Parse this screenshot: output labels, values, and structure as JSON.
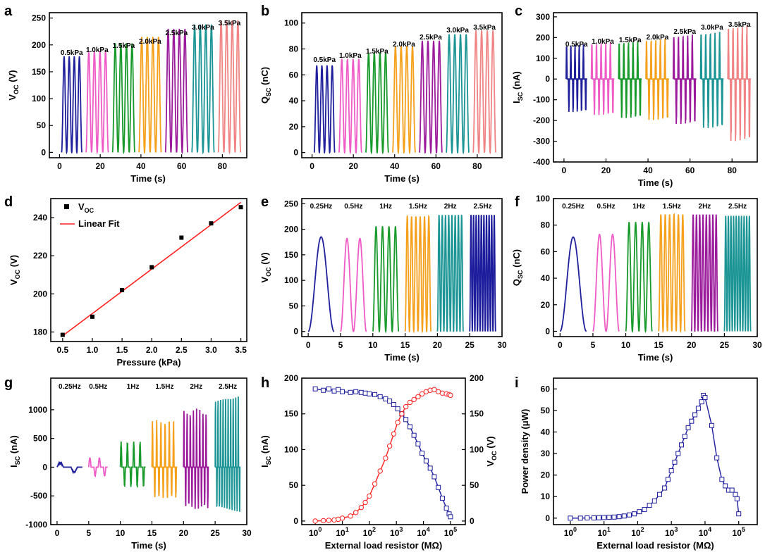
{
  "colors": {
    "navy": "#1f1f9c",
    "pink": "#ef5bc6",
    "green": "#179a2a",
    "orange": "#f5a01a",
    "purple": "#9b1a9b",
    "teal": "#1a9494",
    "salmon": "#f08484",
    "red": "#ff2020",
    "blue_line": "#1c1c9c"
  },
  "chart_data": [
    {
      "id": "a",
      "panel_label": "a",
      "type": "line",
      "title": "",
      "xlabel": "Time (s)",
      "ylabel_main": "V",
      "ylabel_sub": "OC",
      "ylabel_unit": " (V)",
      "xlim": [
        -5,
        92
      ],
      "ylim": [
        -10,
        260
      ],
      "xticks": [
        "0",
        "20",
        "40",
        "60",
        "80"
      ],
      "yticks": [
        "0",
        "50",
        "100",
        "150",
        "200",
        "250"
      ],
      "series": [
        {
          "name": "0.5kPa",
          "start": 1,
          "end": 11,
          "peaks": 4,
          "peak": 178,
          "color": "navy"
        },
        {
          "name": "1.0kPa",
          "start": 13,
          "end": 24,
          "peaks": 4,
          "peak": 188,
          "color": "pink"
        },
        {
          "name": "1.5kPa",
          "start": 26,
          "end": 37,
          "peaks": 4,
          "peak": 202,
          "color": "green"
        },
        {
          "name": "2.0kPa",
          "start": 39,
          "end": 50,
          "peaks": 4,
          "peak": 214,
          "color": "orange"
        },
        {
          "name": "2.5kPa",
          "start": 52,
          "end": 63,
          "peaks": 4,
          "peak": 229,
          "color": "purple"
        },
        {
          "name": "3.0kPa",
          "start": 65,
          "end": 76,
          "peaks": 4,
          "peak": 237,
          "color": "teal"
        },
        {
          "name": "3.5kPa",
          "start": 78,
          "end": 89,
          "peaks": 4,
          "peak": 245,
          "color": "salmon"
        }
      ]
    },
    {
      "id": "b",
      "panel_label": "b",
      "type": "line",
      "title": "",
      "xlabel": "Time (s)",
      "ylabel_main": "Q",
      "ylabel_sub": "SC",
      "ylabel_unit": " (nC)",
      "xlim": [
        -5,
        92
      ],
      "ylim": [
        -4,
        108
      ],
      "xticks": [
        "0",
        "20",
        "40",
        "60",
        "80"
      ],
      "yticks": [
        "0",
        "20",
        "40",
        "60",
        "80",
        "100"
      ],
      "series": [
        {
          "name": "0.5kPa",
          "start": 1,
          "end": 11,
          "peaks": 4,
          "peak": 67,
          "color": "navy"
        },
        {
          "name": "1.0kPa",
          "start": 13,
          "end": 24,
          "peaks": 4,
          "peak": 72,
          "color": "pink"
        },
        {
          "name": "1.5kPa",
          "start": 26,
          "end": 37,
          "peaks": 4,
          "peak": 77,
          "color": "green"
        },
        {
          "name": "2.0kPa",
          "start": 39,
          "end": 50,
          "peaks": 4,
          "peak": 82,
          "color": "orange"
        },
        {
          "name": "2.5kPa",
          "start": 52,
          "end": 63,
          "peaks": 4,
          "peak": 86,
          "color": "purple"
        },
        {
          "name": "3.0kPa",
          "start": 65,
          "end": 76,
          "peaks": 4,
          "peak": 91,
          "color": "teal"
        },
        {
          "name": "3.5kPa",
          "start": 78,
          "end": 89,
          "peaks": 4,
          "peak": 94,
          "color": "salmon"
        }
      ]
    },
    {
      "id": "c",
      "panel_label": "c",
      "type": "line",
      "title": "",
      "xlabel": "Time (s)",
      "ylabel_main": "I",
      "ylabel_sub": "SC",
      "ylabel_unit": " (nA)",
      "xlim": [
        -5,
        92
      ],
      "ylim": [
        -400,
        320
      ],
      "xticks": [
        "0",
        "20",
        "40",
        "60",
        "80"
      ],
      "yticks": [
        "-400",
        "-300",
        "-200",
        "-100",
        "0",
        "100",
        "200",
        "300"
      ],
      "series": [
        {
          "name": "0.5kPa",
          "start": 1,
          "end": 11,
          "peaks": 5,
          "peak": 170,
          "trough": -165,
          "color": "navy"
        },
        {
          "name": "1.0kPa",
          "start": 13,
          "end": 24,
          "peaks": 5,
          "peak": 180,
          "trough": -180,
          "color": "pink"
        },
        {
          "name": "1.5kPa",
          "start": 26,
          "end": 37,
          "peaks": 5,
          "peak": 185,
          "trough": -195,
          "color": "green"
        },
        {
          "name": "2.0kPa",
          "start": 39,
          "end": 50,
          "peaks": 5,
          "peak": 198,
          "trough": -205,
          "color": "orange"
        },
        {
          "name": "2.5kPa",
          "start": 52,
          "end": 63,
          "peaks": 5,
          "peak": 218,
          "trough": -225,
          "color": "purple"
        },
        {
          "name": "3.0kPa",
          "start": 65,
          "end": 76,
          "peaks": 5,
          "peak": 232,
          "trough": -245,
          "color": "teal"
        },
        {
          "name": "3.5kPa",
          "start": 78,
          "end": 89,
          "peaks": 5,
          "peak": 262,
          "trough": -310,
          "color": "salmon"
        }
      ]
    },
    {
      "id": "d",
      "panel_label": "d",
      "type": "scatter",
      "title": "",
      "xlabel": "Pressure (kPa)",
      "ylabel_main": "V",
      "ylabel_sub": "OC",
      "ylabel_unit": " (V)",
      "xlim": [
        0.3,
        3.6
      ],
      "ylim": [
        175,
        250
      ],
      "xticks": [
        "0.5",
        "1.0",
        "1.5",
        "2.0",
        "2.5",
        "3.0",
        "3.5"
      ],
      "yticks": [
        "180",
        "200",
        "220",
        "240"
      ],
      "x": [
        0.5,
        1.0,
        1.5,
        2.0,
        2.5,
        3.0,
        3.5
      ],
      "y": [
        178.5,
        188,
        202,
        214,
        229.5,
        237,
        245.5
      ],
      "fit": {
        "x": [
          0.5,
          3.5
        ],
        "y": [
          178,
          248
        ]
      },
      "legend": [
        {
          "label_main": "V",
          "label_sub": "OC",
          "kind": "square",
          "color": "#000000"
        },
        {
          "label_main": "Linear Fit",
          "label_sub": "",
          "kind": "line",
          "color": "red"
        }
      ]
    },
    {
      "id": "e",
      "panel_label": "e",
      "type": "line",
      "title": "",
      "xlabel": "Time (s)",
      "ylabel_main": "V",
      "ylabel_sub": "OC",
      "ylabel_unit": " (V)",
      "xlim": [
        -1,
        30
      ],
      "ylim": [
        -10,
        260
      ],
      "xticks": [
        "0",
        "5",
        "10",
        "15",
        "20",
        "25",
        "30"
      ],
      "yticks": [
        "0",
        "50",
        "100",
        "150",
        "200",
        "250"
      ],
      "series": [
        {
          "name": "0.25Hz",
          "start": 0,
          "end": 4,
          "peaks": 1,
          "peak": 185,
          "color": "navy"
        },
        {
          "name": "0.5Hz",
          "start": 5,
          "end": 9,
          "peaks": 2,
          "peak": 182,
          "color": "pink"
        },
        {
          "name": "1Hz",
          "start": 10,
          "end": 14,
          "peaks": 4,
          "peak": 205,
          "color": "green"
        },
        {
          "name": "1.5Hz",
          "start": 15,
          "end": 19,
          "peaks": 6,
          "peak": 225,
          "color": "orange"
        },
        {
          "name": "2Hz",
          "start": 20,
          "end": 24,
          "peaks": 8,
          "peak": 228,
          "color": "teal"
        },
        {
          "name": "2.5Hz",
          "start": 25,
          "end": 29,
          "peaks": 10,
          "peak": 228,
          "color": "blue_line"
        }
      ]
    },
    {
      "id": "f",
      "panel_label": "f",
      "type": "line",
      "title": "",
      "xlabel": "Time (s)",
      "ylabel_main": "Q",
      "ylabel_sub": "SC",
      "ylabel_unit": " (nC)",
      "xlim": [
        -1,
        30
      ],
      "ylim": [
        -4,
        100
      ],
      "xticks": [
        "0",
        "5",
        "10",
        "15",
        "20",
        "25",
        "30"
      ],
      "yticks": [
        "0",
        "20",
        "40",
        "60",
        "80",
        "100"
      ],
      "series": [
        {
          "name": "0.25Hz",
          "start": 0,
          "end": 4,
          "peaks": 1,
          "peak": 71,
          "color": "navy"
        },
        {
          "name": "0.5Hz",
          "start": 5,
          "end": 9,
          "peaks": 2,
          "peak": 73,
          "color": "pink"
        },
        {
          "name": "1Hz",
          "start": 10,
          "end": 14,
          "peaks": 4,
          "peak": 82,
          "color": "green"
        },
        {
          "name": "1.5Hz",
          "start": 15,
          "end": 19,
          "peaks": 6,
          "peak": 88,
          "color": "orange"
        },
        {
          "name": "2Hz",
          "start": 20,
          "end": 24,
          "peaks": 8,
          "peak": 88,
          "color": "purple"
        },
        {
          "name": "2.5Hz",
          "start": 25,
          "end": 29,
          "peaks": 10,
          "peak": 87,
          "color": "teal"
        }
      ]
    },
    {
      "id": "g",
      "panel_label": "g",
      "type": "line",
      "title": "",
      "xlabel": "Time (s)",
      "ylabel_main": "I",
      "ylabel_sub": "SC",
      "ylabel_unit": " (nA)",
      "xlim": [
        -1,
        30
      ],
      "ylim": [
        -1000,
        1550
      ],
      "xticks": [
        "0",
        "5",
        "10",
        "15",
        "20",
        "25",
        "30"
      ],
      "yticks": [
        "-1000",
        "-500",
        "0",
        "500",
        "1000"
      ],
      "series": [
        {
          "name": "0.25Hz",
          "start": 0,
          "end": 4,
          "peaks": 1,
          "peak": 85,
          "trough": -90,
          "color": "navy"
        },
        {
          "name": "0.5Hz",
          "start": 5,
          "end": 8,
          "peaks": 2,
          "peak": 170,
          "trough": -160,
          "color": "pink"
        },
        {
          "name": "1Hz",
          "start": 10,
          "end": 14,
          "peaks": 4,
          "peak": 450,
          "trough": -350,
          "color": "green"
        },
        {
          "name": "1.5Hz",
          "start": 15,
          "end": 19,
          "peaks": 6,
          "peak": 820,
          "trough": -550,
          "color": "orange"
        },
        {
          "name": "2Hz",
          "start": 20,
          "end": 24,
          "peaks": 8,
          "peak": 1020,
          "trough": -740,
          "color": "purple"
        },
        {
          "name": "2.5Hz",
          "start": 25,
          "end": 29,
          "peaks": 10,
          "peak": 1270,
          "trough": -800,
          "color": "teal"
        }
      ]
    },
    {
      "id": "h",
      "panel_label": "h",
      "type": "line",
      "title": "",
      "xlabel": "External load resistor (MΩ)",
      "ylabel_main": "I",
      "ylabel_sub": "SC",
      "ylabel_unit": " (nA)",
      "y2label_main": "V",
      "y2label_sub": "OC",
      "y2label_unit": " (V)",
      "xlim_log10": [
        -0.5,
        5.55
      ],
      "ylim": [
        -5,
        200
      ],
      "y2lim": [
        -5,
        200
      ],
      "xticks_exp": [
        "0",
        "1",
        "2",
        "3",
        "4",
        "5"
      ],
      "yticks": [
        "0",
        "50",
        "100",
        "150",
        "200"
      ],
      "y2ticks": [
        "0",
        "50",
        "100",
        "150",
        "200"
      ],
      "series": [
        {
          "name": "I_SC",
          "color": "blue_line",
          "marker": "square",
          "log10_x": [
            0,
            0.3,
            0.5,
            0.7,
            0.85,
            1,
            1.3,
            1.5,
            1.7,
            1.85,
            2,
            2.2,
            2.4,
            2.6,
            2.75,
            2.9,
            3.05,
            3.2,
            3.35,
            3.5,
            3.65,
            3.8,
            3.95,
            4.1,
            4.25,
            4.4,
            4.55,
            4.7,
            4.85,
            4.95,
            5.0
          ],
          "y": [
            185,
            183,
            185,
            182,
            184,
            181,
            180,
            181,
            180,
            179,
            178,
            177,
            174,
            171,
            168,
            163,
            157,
            150,
            142,
            132,
            120,
            108,
            95,
            84,
            74,
            62,
            47,
            32,
            18,
            10,
            6
          ]
        },
        {
          "name": "V_OC",
          "color": "red",
          "marker": "circle",
          "log10_x": [
            0,
            0.3,
            0.5,
            0.7,
            0.85,
            1,
            1.3,
            1.5,
            1.7,
            1.85,
            2,
            2.2,
            2.4,
            2.6,
            2.75,
            2.9,
            3.05,
            3.2,
            3.35,
            3.5,
            3.65,
            3.8,
            3.95,
            4.1,
            4.25,
            4.4,
            4.55,
            4.7,
            4.85,
            4.95,
            5.0
          ],
          "y": [
            0,
            0.5,
            1,
            1.5,
            2.5,
            4,
            7,
            12,
            19,
            26,
            35,
            52,
            70,
            88,
            105,
            122,
            138,
            150,
            160,
            166,
            170,
            174,
            178,
            181,
            183,
            184,
            181,
            179,
            178,
            177,
            176
          ]
        }
      ]
    },
    {
      "id": "i",
      "panel_label": "i",
      "type": "line",
      "title": "",
      "xlabel": "External load resistor (MΩ)",
      "ylabel_main": "Power density (μW)",
      "ylabel_sub": "",
      "ylabel_unit": "",
      "xlim_log10": [
        -0.5,
        5.55
      ],
      "ylim": [
        -3,
        65
      ],
      "xticks_exp": [
        "0",
        "1",
        "2",
        "3",
        "4",
        "5"
      ],
      "yticks": [
        "0",
        "10",
        "20",
        "30",
        "40",
        "50",
        "60"
      ],
      "series": [
        {
          "name": "Power density",
          "color": "blue_line",
          "marker": "square",
          "log10_x": [
            0,
            0.3,
            0.5,
            0.7,
            0.85,
            1,
            1.15,
            1.3,
            1.45,
            1.6,
            1.75,
            1.9,
            2.05,
            2.2,
            2.35,
            2.5,
            2.65,
            2.8,
            2.9,
            3.0,
            3.1,
            3.2,
            3.3,
            3.4,
            3.5,
            3.6,
            3.7,
            3.8,
            3.9,
            3.95,
            4.0,
            4.2,
            4.35,
            4.5,
            4.6,
            4.7,
            4.8,
            4.9,
            4.95,
            5.0
          ],
          "y": [
            0,
            0,
            0.1,
            0.1,
            0.2,
            0.3,
            0.4,
            0.5,
            0.7,
            1,
            1.5,
            2,
            3,
            4,
            6,
            8,
            11,
            14,
            18,
            22,
            26,
            30,
            34,
            38,
            42,
            45,
            48,
            51,
            54,
            57,
            56,
            43,
            28,
            18,
            15,
            13,
            13,
            11,
            9,
            2
          ]
        }
      ]
    }
  ]
}
